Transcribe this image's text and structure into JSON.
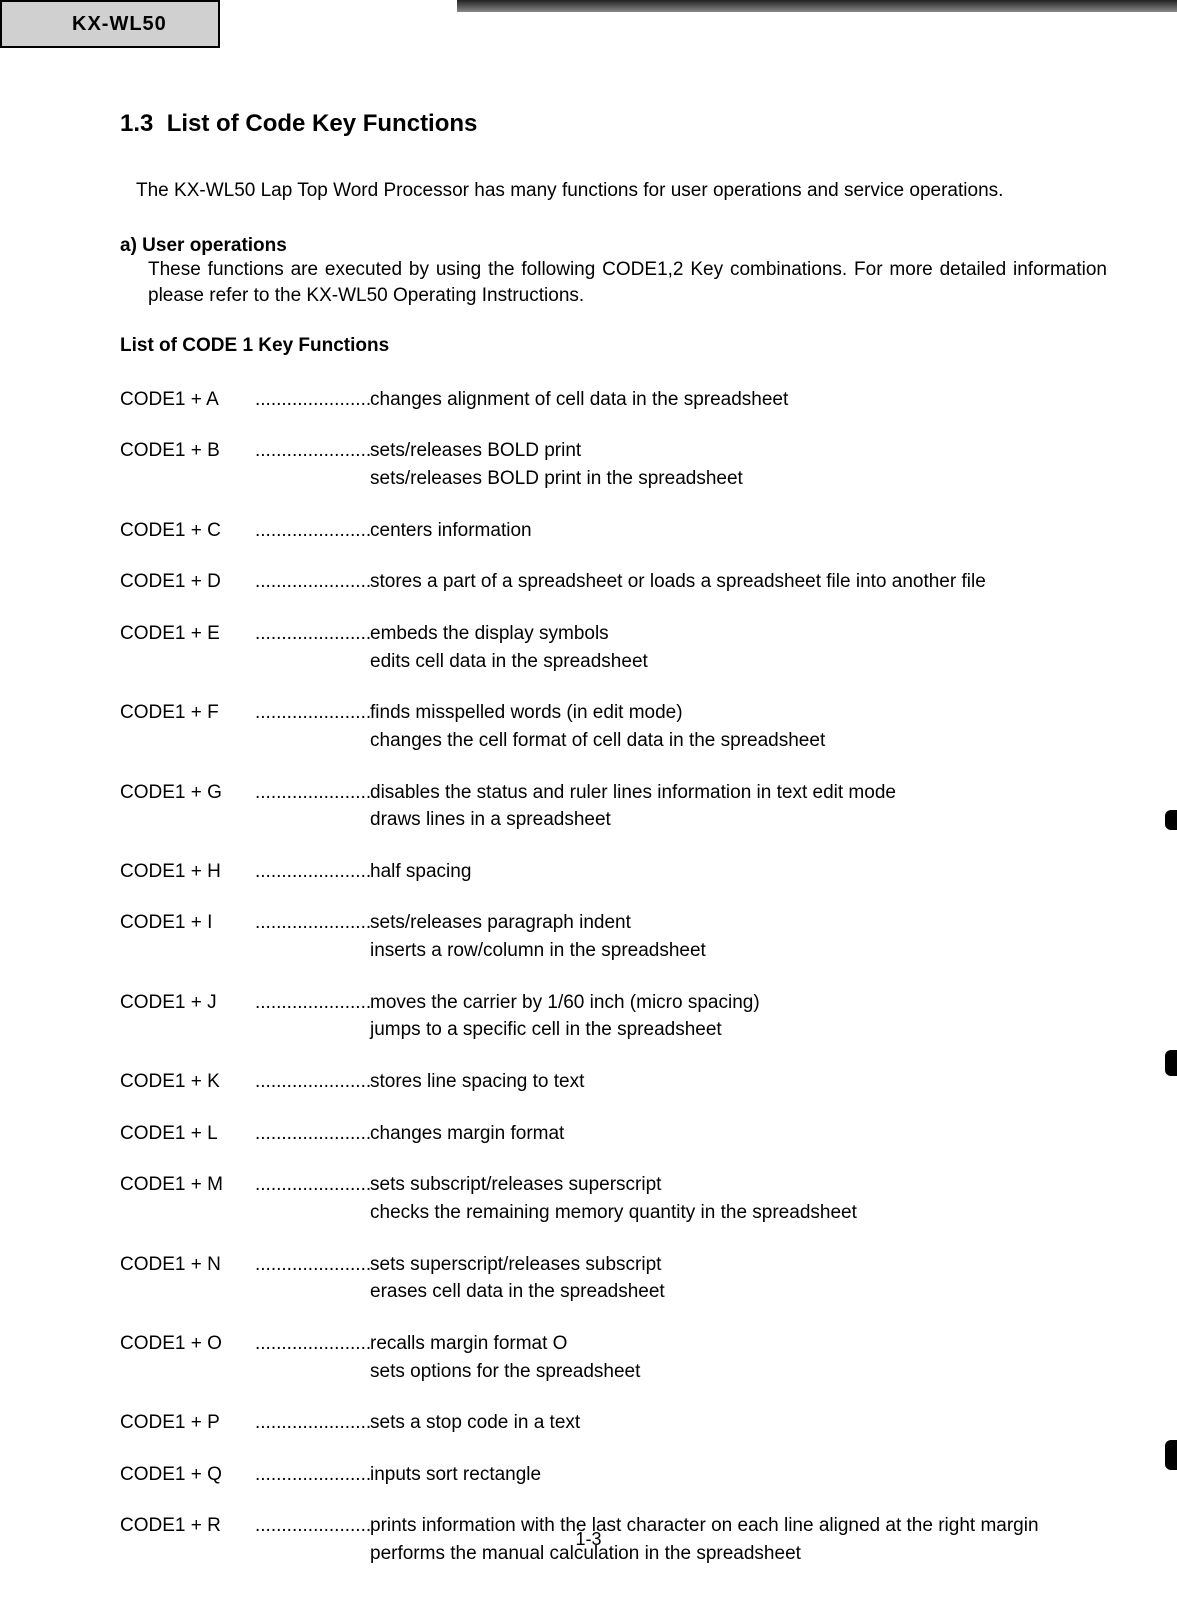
{
  "model": "KX-WL50",
  "section": {
    "number": "1.3",
    "title": "List of Code Key Functions"
  },
  "intro": "The KX-WL50 Lap Top Word Processor has many functions for user operations and service operations.",
  "subsection": {
    "label": "a)  User operations",
    "text": "These functions are executed by using the following CODE1,2 Key combinations.  For more detailed information please refer to the KX-WL50 Operating Instructions."
  },
  "list_heading": "List of CODE 1 Key Functions",
  "codes": [
    {
      "key": "CODE1 + A",
      "desc": [
        "changes alignment of cell data in the spreadsheet"
      ]
    },
    {
      "key": "CODE1 + B",
      "desc": [
        "sets/releases BOLD print",
        "sets/releases BOLD print in the spreadsheet"
      ]
    },
    {
      "key": "CODE1 + C",
      "desc": [
        "centers information"
      ]
    },
    {
      "key": "CODE1 + D",
      "desc": [
        "stores a part of a spreadsheet or loads a spreadsheet file into another file"
      ]
    },
    {
      "key": "CODE1 + E",
      "desc": [
        "embeds the display symbols",
        "edits cell data in the spreadsheet"
      ]
    },
    {
      "key": "CODE1 + F",
      "desc": [
        "finds misspelled words (in edit mode)",
        "changes the  cell format of cell data in the spreadsheet"
      ]
    },
    {
      "key": "CODE1 + G",
      "desc": [
        "disables the status and ruler lines information in text edit mode",
        "draws lines in a spreadsheet"
      ]
    },
    {
      "key": "CODE1 + H",
      "desc": [
        "half spacing"
      ]
    },
    {
      "key": "CODE1 + I",
      "desc": [
        "sets/releases paragraph indent",
        "inserts a row/column in the spreadsheet"
      ]
    },
    {
      "key": "CODE1 + J",
      "desc": [
        "moves the carrier by 1/60 inch (micro spacing)",
        "jumps to a specific cell in the spreadsheet"
      ]
    },
    {
      "key": "CODE1 + K",
      "desc": [
        "stores line spacing to text"
      ]
    },
    {
      "key": "CODE1 + L",
      "desc": [
        "changes margin format"
      ]
    },
    {
      "key": "CODE1 + M",
      "desc": [
        "sets subscript/releases superscript",
        "checks the remaining memory quantity in the spreadsheet"
      ]
    },
    {
      "key": "CODE1 + N",
      "desc": [
        "sets superscript/releases subscript",
        "erases cell data in the spreadsheet"
      ]
    },
    {
      "key": "CODE1 + O",
      "desc": [
        "recalls margin format O",
        "sets options for the spreadsheet"
      ]
    },
    {
      "key": "CODE1 + P",
      "desc": [
        "sets a stop code in a text"
      ]
    },
    {
      "key": "CODE1 + Q",
      "desc": [
        "inputs sort rectangle"
      ]
    },
    {
      "key": "CODE1 + R",
      "desc": [
        "prints information with the last character on each line aligned at the right margin",
        "performs the manual calculation in the spreadsheet"
      ]
    }
  ],
  "page_number": "1-3",
  "dots": "..........................."
}
